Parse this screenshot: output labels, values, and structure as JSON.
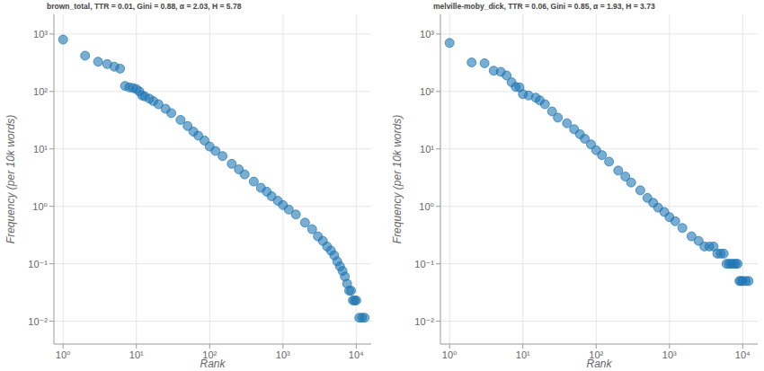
{
  "chart_data": [
    {
      "type": "scatter",
      "title": "brown_total, TTR = 0.01, Gini = 0.88, α = 2.03, H = 5.78",
      "x_label": "Rank",
      "y_label": "Frequency (per 10k words)",
      "x": [
        1,
        2,
        3,
        4,
        5,
        6,
        7,
        8,
        9,
        10,
        11,
        12,
        13,
        15,
        17,
        20,
        25,
        30,
        40,
        50,
        60,
        70,
        85,
        100,
        120,
        150,
        200,
        250,
        300,
        400,
        500,
        600,
        700,
        850,
        1000,
        1200,
        1500,
        2000,
        2500,
        3000,
        3500,
        4000,
        4500,
        5000,
        5500,
        6000,
        6500,
        7000,
        7500,
        8000,
        8500,
        9000,
        9500,
        10000,
        11000,
        12000,
        13000
      ],
      "values": [
        800,
        420,
        330,
        300,
        270,
        250,
        125,
        118,
        115,
        110,
        100,
        85,
        82,
        75,
        68,
        60,
        50,
        42,
        32,
        25,
        20,
        17,
        14,
        11,
        9.2,
        7.5,
        5.5,
        4.4,
        3.6,
        2.7,
        2.1,
        1.8,
        1.5,
        1.25,
        1.05,
        0.88,
        0.72,
        0.52,
        0.4,
        0.3,
        0.25,
        0.2,
        0.17,
        0.14,
        0.11,
        0.09,
        0.075,
        0.06,
        0.045,
        0.034,
        0.034,
        0.023,
        0.023,
        0.023,
        0.0115,
        0.0115,
        0.0115
      ],
      "xlim": [
        0.75,
        16000
      ],
      "ylim": [
        0.004,
        2200
      ],
      "xticks": [
        {
          "value": 1,
          "label": "10⁰"
        },
        {
          "value": 10,
          "label": "10¹"
        },
        {
          "value": 100,
          "label": "10²"
        },
        {
          "value": 1000,
          "label": "10³"
        },
        {
          "value": 10000,
          "label": "10⁴"
        }
      ],
      "yticks": [
        {
          "value": 0.01,
          "label": "10⁻²"
        },
        {
          "value": 0.1,
          "label": "10⁻¹"
        },
        {
          "value": 1,
          "label": "10⁰"
        },
        {
          "value": 10,
          "label": "10¹"
        },
        {
          "value": 100,
          "label": "10²"
        },
        {
          "value": 1000,
          "label": "10³"
        }
      ],
      "log": true,
      "grid": true,
      "color": "#1f77b4",
      "marker": "circle"
    },
    {
      "type": "scatter",
      "title": "melville-moby_dick, TTR = 0.06, Gini = 0.85, α = 1.93, H = 3.73",
      "x_label": "Rank",
      "y_label": "Frequency (per 10k words)",
      "x": [
        1,
        2,
        3,
        4,
        5,
        6,
        7,
        8,
        9,
        10,
        12,
        15,
        17,
        20,
        25,
        30,
        40,
        50,
        60,
        70,
        85,
        100,
        120,
        150,
        200,
        250,
        300,
        400,
        500,
        600,
        700,
        850,
        1000,
        1200,
        1500,
        2000,
        2500,
        3000,
        3500,
        4000,
        4500,
        5000,
        5500,
        6000,
        6500,
        7000,
        7500,
        8000,
        8500,
        9000,
        9500,
        10000,
        11000,
        12000
      ],
      "values": [
        700,
        320,
        310,
        230,
        220,
        190,
        145,
        120,
        118,
        90,
        85,
        78,
        70,
        60,
        45,
        35,
        28,
        22,
        18,
        15,
        12,
        9.5,
        7.8,
        6,
        4.2,
        3.3,
        2.6,
        1.9,
        1.4,
        1.15,
        0.95,
        0.8,
        0.65,
        0.55,
        0.42,
        0.3,
        0.25,
        0.2,
        0.2,
        0.2,
        0.15,
        0.15,
        0.15,
        0.1,
        0.1,
        0.1,
        0.1,
        0.1,
        0.1,
        0.05,
        0.05,
        0.05,
        0.05,
        0.05
      ],
      "xlim": [
        0.75,
        16000
      ],
      "ylim": [
        0.004,
        2200
      ],
      "xticks": [
        {
          "value": 1,
          "label": "10⁰"
        },
        {
          "value": 10,
          "label": "10¹"
        },
        {
          "value": 100,
          "label": "10²"
        },
        {
          "value": 1000,
          "label": "10³"
        },
        {
          "value": 10000,
          "label": "10⁴"
        }
      ],
      "yticks": [
        {
          "value": 0.01,
          "label": "10⁻²"
        },
        {
          "value": 0.1,
          "label": "10⁻¹"
        },
        {
          "value": 1,
          "label": "10⁰"
        },
        {
          "value": 10,
          "label": "10¹"
        },
        {
          "value": 100,
          "label": "10²"
        },
        {
          "value": 1000,
          "label": "10³"
        }
      ],
      "log": true,
      "grid": true,
      "color": "#1f77b4",
      "marker": "circle"
    }
  ]
}
